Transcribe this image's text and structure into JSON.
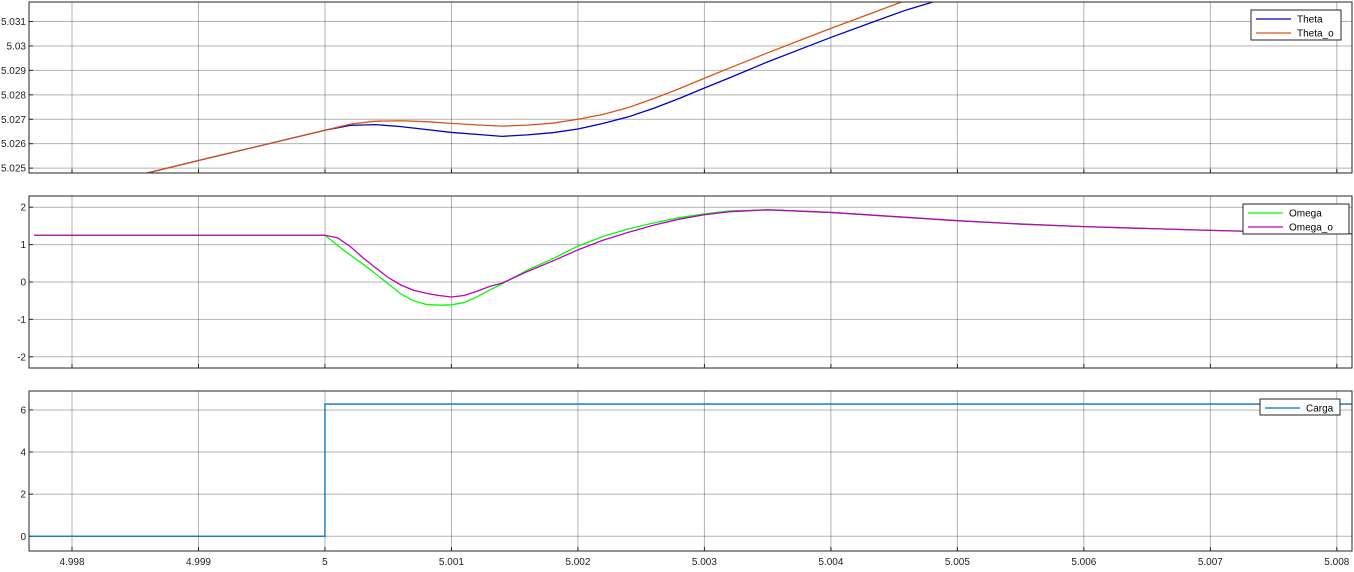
{
  "chart_data": [
    {
      "type": "line",
      "ylim": [
        5.0248,
        5.0318
      ],
      "xlim": [
        4.99766,
        5.00812
      ],
      "yticks": [
        5.025,
        5.026,
        5.027,
        5.028,
        5.029,
        5.03,
        5.031
      ],
      "ytick_labels": [
        "5.025",
        "5.026",
        "5.027",
        "5.028",
        "5.029",
        "5.03",
        "5.031"
      ],
      "xticks": [
        4.998,
        4.999,
        5,
        5.001,
        5.002,
        5.003,
        5.004,
        5.005,
        5.006,
        5.007,
        5.008
      ],
      "grid": true,
      "legend": "top-right",
      "series": [
        {
          "name": "Theta",
          "color": "#0000cc",
          "x": [
            4.9977,
            4.9985,
            4.999,
            5.0,
            5.0002,
            5.0004,
            5.0006,
            5.0008,
            5.001,
            5.0012,
            5.0014,
            5.0016,
            5.0018,
            5.002,
            5.0022,
            5.0024,
            5.0026,
            5.0028,
            5.003,
            5.0032,
            5.0035,
            5.0038,
            5.004,
            5.0043,
            5.0046,
            5.005
          ],
          "y": [
            5.02425,
            5.02468,
            5.02531,
            5.02655,
            5.02675,
            5.02678,
            5.0267,
            5.02658,
            5.02646,
            5.02638,
            5.0263,
            5.02636,
            5.02645,
            5.0266,
            5.02683,
            5.0271,
            5.02745,
            5.02785,
            5.02828,
            5.0287,
            5.02935,
            5.02995,
            5.03035,
            5.03092,
            5.03148,
            5.0321
          ]
        },
        {
          "name": "Theta_o",
          "color": "#d95319",
          "x": [
            4.9977,
            4.9985,
            4.999,
            5.0,
            5.0002,
            5.0004,
            5.0006,
            5.0008,
            5.001,
            5.0012,
            5.0014,
            5.0016,
            5.0018,
            5.002,
            5.0022,
            5.0024,
            5.0026,
            5.0028,
            5.003,
            5.0032,
            5.0035,
            5.0038,
            5.004,
            5.0043,
            5.0046,
            5.005
          ],
          "y": [
            5.02425,
            5.02468,
            5.02531,
            5.02655,
            5.0268,
            5.02692,
            5.02694,
            5.0269,
            5.02683,
            5.02677,
            5.02672,
            5.02676,
            5.02684,
            5.027,
            5.0272,
            5.02748,
            5.02785,
            5.02825,
            5.02868,
            5.0291,
            5.02972,
            5.03032,
            5.03072,
            5.0313,
            5.03188,
            5.0325
          ]
        }
      ]
    },
    {
      "type": "line",
      "ylim": [
        -2.3,
        2.3
      ],
      "xlim": [
        4.99766,
        5.00812
      ],
      "yticks": [
        -2,
        -1,
        0,
        1,
        2
      ],
      "ytick_labels": [
        "-2",
        "-1",
        "0",
        "1",
        "2"
      ],
      "xticks": [
        4.998,
        4.999,
        5,
        5.001,
        5.002,
        5.003,
        5.004,
        5.005,
        5.006,
        5.007,
        5.008
      ],
      "grid": true,
      "legend": "top-right",
      "series": [
        {
          "name": "Omega",
          "color": "#00ff00",
          "x": [
            4.9977,
            5.0,
            5.0001,
            5.0002,
            5.0003,
            5.0004,
            5.0005,
            5.0006,
            5.0007,
            5.0008,
            5.0009,
            5.001,
            5.0011,
            5.0012,
            5.0013,
            5.0014,
            5.0016,
            5.0018,
            5.002,
            5.0022,
            5.0024,
            5.0026,
            5.0028,
            5.003,
            5.0032,
            5.0035,
            5.004,
            5.0045,
            5.005,
            5.0055,
            5.006,
            5.0065,
            5.007,
            5.0075,
            5.008,
            5.0082
          ],
          "y": [
            1.25,
            1.25,
            0.98,
            0.72,
            0.48,
            0.22,
            -0.05,
            -0.32,
            -0.5,
            -0.6,
            -0.62,
            -0.61,
            -0.55,
            -0.4,
            -0.22,
            -0.05,
            0.32,
            0.62,
            0.96,
            1.22,
            1.42,
            1.58,
            1.72,
            1.82,
            1.9,
            1.93,
            1.86,
            1.75,
            1.64,
            1.55,
            1.48,
            1.43,
            1.38,
            1.34,
            1.3,
            1.28
          ]
        },
        {
          "name": "Omega_o",
          "color": "#bf00bf",
          "x": [
            4.9977,
            5.0,
            5.0001,
            5.0002,
            5.0003,
            5.0004,
            5.0005,
            5.0006,
            5.0007,
            5.0008,
            5.0009,
            5.001,
            5.0011,
            5.0012,
            5.0013,
            5.0014,
            5.0016,
            5.0018,
            5.002,
            5.0022,
            5.0024,
            5.0026,
            5.0028,
            5.003,
            5.0032,
            5.0035,
            5.004,
            5.0045,
            5.005,
            5.0055,
            5.006,
            5.0065,
            5.007,
            5.0075,
            5.008,
            5.0082
          ],
          "y": [
            1.25,
            1.25,
            1.18,
            0.95,
            0.65,
            0.38,
            0.12,
            -0.08,
            -0.22,
            -0.3,
            -0.36,
            -0.4,
            -0.36,
            -0.25,
            -0.12,
            -0.03,
            0.28,
            0.56,
            0.86,
            1.12,
            1.33,
            1.52,
            1.68,
            1.8,
            1.88,
            1.93,
            1.86,
            1.75,
            1.64,
            1.55,
            1.48,
            1.43,
            1.38,
            1.34,
            1.3,
            1.28
          ]
        }
      ]
    },
    {
      "type": "line",
      "ylim": [
        -0.7,
        6.9
      ],
      "xlim": [
        4.99766,
        5.00812
      ],
      "yticks": [
        0,
        2,
        4,
        6
      ],
      "ytick_labels": [
        "0",
        "2",
        "4",
        "6"
      ],
      "xticks": [
        4.998,
        4.999,
        5,
        5.001,
        5.002,
        5.003,
        5.004,
        5.005,
        5.006,
        5.007,
        5.008
      ],
      "xtick_labels": [
        "4.998",
        "4.999",
        "5",
        "5.001",
        "5.002",
        "5.003",
        "5.004",
        "5.005",
        "5.006",
        "5.007",
        "5.008"
      ],
      "grid": true,
      "legend": "top-right",
      "series": [
        {
          "name": "Carga",
          "color": "#0072bd",
          "x": [
            4.99766,
            5.0,
            5.0,
            5.00812
          ],
          "y": [
            0,
            0,
            6.28,
            6.28
          ]
        }
      ]
    }
  ]
}
